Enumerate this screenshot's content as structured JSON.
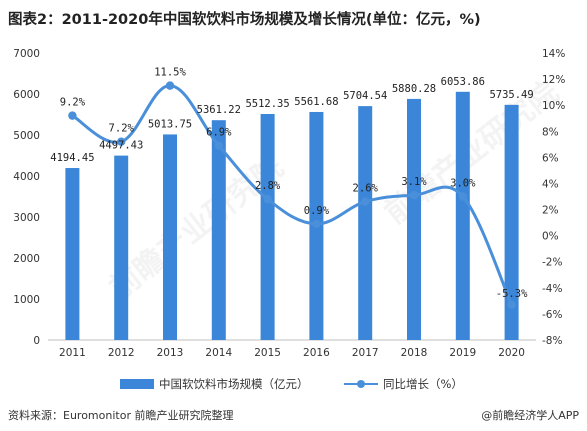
{
  "title": "图表2：2011-2020年中国软饮料市场规模及增长情况(单位：亿元，%)",
  "source": "资料来源：Euromonitor 前瞻产业研究院整理",
  "credit": "@前瞻经济学人APP",
  "watermarks": [
    "前瞻产业研究院",
    "前瞻产业研究院"
  ],
  "colors": {
    "bar": "#3b86d8",
    "line": "#4a8fd9",
    "axis_text": "#333333"
  },
  "chart_data": {
    "type": "bar",
    "categories": [
      "2011",
      "2012",
      "2013",
      "2014",
      "2015",
      "2016",
      "2017",
      "2018",
      "2019",
      "2020"
    ],
    "series": [
      {
        "name": "中国软饮料市场规模（亿元）",
        "type": "bar",
        "axis": "left",
        "values": [
          4194.45,
          4497.43,
          5013.75,
          5361.22,
          5512.35,
          5561.68,
          5704.54,
          5880.28,
          6053.86,
          5735.49
        ],
        "labels": [
          "4194.45",
          "4497.43",
          "5013.75",
          "5361.22",
          "5512.35",
          "5561.68",
          "5704.54",
          "5880.28",
          "6053.86",
          "5735.49"
        ]
      },
      {
        "name": "同比增长（%）",
        "type": "line",
        "axis": "right",
        "values": [
          9.2,
          7.2,
          11.5,
          6.9,
          2.8,
          0.9,
          2.6,
          3.1,
          3.0,
          -5.3
        ],
        "labels": [
          "9.2%",
          "7.2%",
          "11.5%",
          "6.9%",
          "2.8%",
          "0.9%",
          "2.6%",
          "3.1%",
          "3.0%",
          "-5.3%"
        ]
      }
    ],
    "y_left": {
      "min": 0,
      "max": 7000,
      "ticks": [
        "0",
        "1000",
        "2000",
        "3000",
        "4000",
        "5000",
        "6000",
        "7000"
      ]
    },
    "y_right": {
      "min": -8,
      "max": 14,
      "ticks": [
        "-8%",
        "-6%",
        "-4%",
        "-2%",
        "0%",
        "2%",
        "4%",
        "6%",
        "8%",
        "10%",
        "12%",
        "14%"
      ]
    },
    "grid": false,
    "legend": "bottom"
  }
}
